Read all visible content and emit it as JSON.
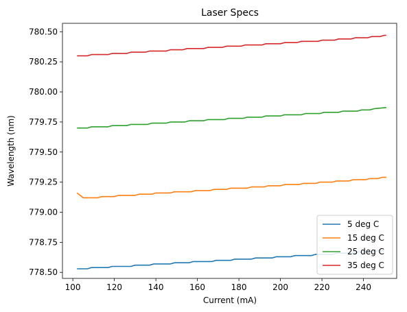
{
  "chart_data": {
    "type": "line",
    "title": "Laser Specs",
    "xlabel": "Current (mA)",
    "ylabel": "Wavelength (nm)",
    "xlim": [
      95,
      256
    ],
    "ylim": [
      778.45,
      780.57
    ],
    "xticks": [
      100,
      120,
      140,
      160,
      180,
      200,
      220,
      240
    ],
    "yticks": [
      778.5,
      778.75,
      779.0,
      779.25,
      779.5,
      779.75,
      780.0,
      780.25,
      780.5
    ],
    "grid": false,
    "legend_position": "lower-right",
    "series": [
      {
        "name": "5 deg C",
        "color": "#1f77b4",
        "points": [
          [
            102,
            778.53
          ],
          [
            107,
            778.53
          ],
          [
            109,
            778.54
          ],
          [
            117,
            778.54
          ],
          [
            119,
            778.55
          ],
          [
            128,
            778.55
          ],
          [
            130,
            778.56
          ],
          [
            137,
            778.56
          ],
          [
            139,
            778.57
          ],
          [
            147,
            778.57
          ],
          [
            149,
            778.58
          ],
          [
            156,
            778.58
          ],
          [
            158,
            778.59
          ],
          [
            167,
            778.59
          ],
          [
            169,
            778.6
          ],
          [
            176,
            778.6
          ],
          [
            178,
            778.61
          ],
          [
            186,
            778.61
          ],
          [
            188,
            778.62
          ],
          [
            196,
            778.62
          ],
          [
            198,
            778.63
          ],
          [
            205,
            778.63
          ],
          [
            207,
            778.64
          ],
          [
            215,
            778.64
          ],
          [
            217,
            778.65
          ],
          [
            225,
            778.65
          ],
          [
            227,
            778.66
          ],
          [
            235,
            778.66
          ],
          [
            237,
            778.67
          ],
          [
            245,
            778.67
          ],
          [
            247,
            778.68
          ],
          [
            250,
            778.68
          ]
        ]
      },
      {
        "name": "15 deg C",
        "color": "#ff7f0e",
        "points": [
          [
            102,
            779.16
          ],
          [
            105,
            779.12
          ],
          [
            112,
            779.12
          ],
          [
            114,
            779.13
          ],
          [
            120,
            779.13
          ],
          [
            122,
            779.14
          ],
          [
            130,
            779.14
          ],
          [
            132,
            779.15
          ],
          [
            138,
            779.15
          ],
          [
            140,
            779.16
          ],
          [
            147,
            779.16
          ],
          [
            149,
            779.17
          ],
          [
            157,
            779.17
          ],
          [
            159,
            779.18
          ],
          [
            166,
            779.18
          ],
          [
            168,
            779.19
          ],
          [
            174,
            779.19
          ],
          [
            176,
            779.2
          ],
          [
            184,
            779.2
          ],
          [
            186,
            779.21
          ],
          [
            192,
            779.21
          ],
          [
            194,
            779.22
          ],
          [
            200,
            779.22
          ],
          [
            202,
            779.23
          ],
          [
            209,
            779.23
          ],
          [
            211,
            779.24
          ],
          [
            217,
            779.24
          ],
          [
            219,
            779.25
          ],
          [
            225,
            779.25
          ],
          [
            227,
            779.26
          ],
          [
            233,
            779.26
          ],
          [
            235,
            779.27
          ],
          [
            241,
            779.27
          ],
          [
            243,
            779.28
          ],
          [
            247,
            779.28
          ],
          [
            249,
            779.29
          ],
          [
            251,
            779.29
          ]
        ]
      },
      {
        "name": "25 deg C",
        "color": "#2ca02c",
        "points": [
          [
            102,
            779.7
          ],
          [
            107,
            779.7
          ],
          [
            109,
            779.71
          ],
          [
            117,
            779.71
          ],
          [
            119,
            779.72
          ],
          [
            126,
            779.72
          ],
          [
            128,
            779.73
          ],
          [
            136,
            779.73
          ],
          [
            138,
            779.74
          ],
          [
            145,
            779.74
          ],
          [
            147,
            779.75
          ],
          [
            154,
            779.75
          ],
          [
            156,
            779.76
          ],
          [
            163,
            779.76
          ],
          [
            165,
            779.77
          ],
          [
            173,
            779.77
          ],
          [
            175,
            779.78
          ],
          [
            182,
            779.78
          ],
          [
            184,
            779.79
          ],
          [
            191,
            779.79
          ],
          [
            193,
            779.8
          ],
          [
            200,
            779.8
          ],
          [
            202,
            779.81
          ],
          [
            210,
            779.81
          ],
          [
            212,
            779.82
          ],
          [
            219,
            779.82
          ],
          [
            221,
            779.83
          ],
          [
            228,
            779.83
          ],
          [
            230,
            779.84
          ],
          [
            237,
            779.84
          ],
          [
            239,
            779.85
          ],
          [
            243,
            779.85
          ],
          [
            245,
            779.86
          ],
          [
            251,
            779.87
          ]
        ]
      },
      {
        "name": "35 deg C",
        "color": "#d62728",
        "points": [
          [
            102,
            780.3
          ],
          [
            107,
            780.3
          ],
          [
            109,
            780.31
          ],
          [
            117,
            780.31
          ],
          [
            119,
            780.32
          ],
          [
            126,
            780.32
          ],
          [
            128,
            780.33
          ],
          [
            135,
            780.33
          ],
          [
            137,
            780.34
          ],
          [
            145,
            780.34
          ],
          [
            147,
            780.35
          ],
          [
            153,
            780.35
          ],
          [
            155,
            780.36
          ],
          [
            163,
            780.36
          ],
          [
            165,
            780.37
          ],
          [
            172,
            780.37
          ],
          [
            174,
            780.38
          ],
          [
            181,
            780.38
          ],
          [
            183,
            780.39
          ],
          [
            191,
            780.39
          ],
          [
            193,
            780.4
          ],
          [
            200,
            780.4
          ],
          [
            202,
            780.41
          ],
          [
            208,
            780.41
          ],
          [
            210,
            780.42
          ],
          [
            218,
            780.42
          ],
          [
            220,
            780.43
          ],
          [
            226,
            780.43
          ],
          [
            228,
            780.44
          ],
          [
            234,
            780.44
          ],
          [
            236,
            780.45
          ],
          [
            242,
            780.45
          ],
          [
            244,
            780.46
          ],
          [
            248,
            780.46
          ],
          [
            250,
            780.47
          ],
          [
            251,
            780.47
          ]
        ]
      }
    ]
  }
}
